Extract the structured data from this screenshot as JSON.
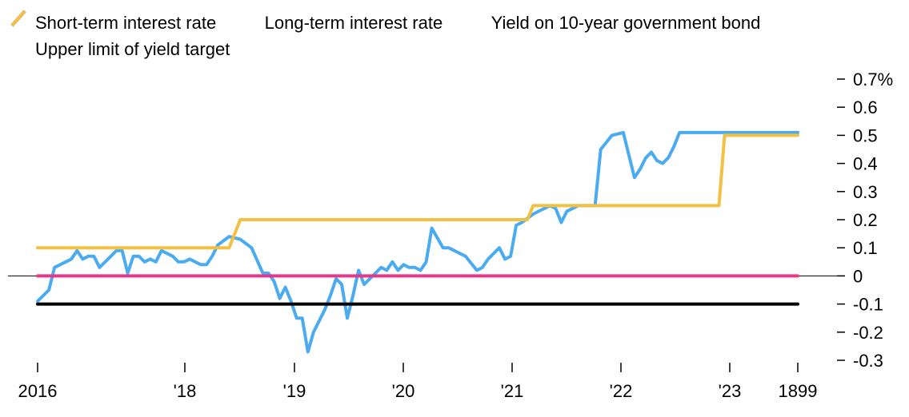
{
  "chart_data": {
    "type": "line",
    "legend": [
      {
        "name": "Short-term interest rate",
        "color": "#000000"
      },
      {
        "name": "Long-term interest rate",
        "color": "#e8378a"
      },
      {
        "name": "Yield on 10-year government bond",
        "color": "#4aabf0"
      },
      {
        "name": "Upper limit of yield target",
        "color": "#f2c043"
      }
    ],
    "x_ticks": [
      "2016",
      "'18",
      "'19",
      "'20",
      "'21",
      "'22",
      "'23",
      "1899"
    ],
    "y_ticks": [
      "0.7%",
      "0.6",
      "0.5",
      "0.4",
      "0.3",
      "0.2",
      "0.1",
      "0",
      "-0.1",
      "-0.2",
      "-0.3"
    ],
    "ylim": [
      -0.3,
      0.7
    ],
    "xlim": [
      0,
      135
    ],
    "series": [
      {
        "name": "Short-term interest rate",
        "color": "#000000",
        "x": [
          0,
          135
        ],
        "y": [
          -0.1,
          -0.1
        ]
      },
      {
        "name": "Long-term interest rate",
        "color": "#e8378a",
        "x": [
          0,
          135
        ],
        "y": [
          0,
          0
        ]
      },
      {
        "name": "Upper limit of yield target",
        "color": "#f2c043",
        "x": [
          0,
          34,
          36,
          87,
          88,
          121,
          122,
          135
        ],
        "y": [
          0.1,
          0.1,
          0.2,
          0.2,
          0.25,
          0.25,
          0.5,
          0.5
        ]
      },
      {
        "name": "Yield on 10-year government bond",
        "color": "#4aabf0",
        "x": [
          0,
          2,
          3,
          5,
          6,
          7,
          8,
          9,
          10,
          11,
          13,
          14,
          15,
          16,
          17,
          18,
          19,
          20,
          21,
          22,
          24,
          25,
          26,
          27,
          28,
          29,
          30,
          31,
          32,
          34,
          36,
          38,
          40,
          41,
          42,
          43,
          44,
          45,
          46,
          47,
          48,
          49,
          51,
          52,
          53,
          54,
          55,
          56,
          57,
          58,
          60,
          61,
          62,
          63,
          64,
          65,
          66,
          67,
          68,
          69,
          70,
          72,
          73,
          74,
          76,
          78,
          79,
          80,
          81,
          82,
          83,
          84,
          85,
          86,
          88,
          89,
          90,
          91,
          92,
          93,
          94,
          96,
          97,
          98,
          99,
          100,
          102,
          104,
          106,
          107,
          108,
          109,
          110,
          111,
          112,
          113,
          114,
          116,
          118,
          119,
          120,
          121,
          122,
          123,
          124,
          125,
          126,
          127,
          128,
          129,
          130,
          131,
          132,
          133,
          135
        ],
        "y": [
          -0.09,
          -0.05,
          0.03,
          0.05,
          0.06,
          0.09,
          0.06,
          0.07,
          0.07,
          0.03,
          0.07,
          0.09,
          0.09,
          0.01,
          0.07,
          0.07,
          0.05,
          0.06,
          0.05,
          0.09,
          0.07,
          0.05,
          0.05,
          0.06,
          0.05,
          0.04,
          0.04,
          0.07,
          0.11,
          0.14,
          0.13,
          0.1,
          0.01,
          0.01,
          -0.02,
          -0.08,
          -0.04,
          -0.09,
          -0.15,
          -0.15,
          -0.27,
          -0.2,
          -0.12,
          -0.07,
          -0.01,
          -0.03,
          -0.15,
          -0.07,
          0.02,
          -0.03,
          0.01,
          0.03,
          0.02,
          0.05,
          0.02,
          0.04,
          0.03,
          0.03,
          0.02,
          0.05,
          0.17,
          0.1,
          0.1,
          0.09,
          0.07,
          0.02,
          0.03,
          0.06,
          0.08,
          0.1,
          0.06,
          0.07,
          0.18,
          0.19,
          0.22,
          0.23,
          0.24,
          0.25,
          0.24,
          0.19,
          0.23,
          0.25,
          0.25,
          0.25,
          0.25,
          0.45,
          0.5,
          0.51,
          0.35,
          0.38,
          0.42,
          0.44,
          0.41,
          0.4,
          0.42,
          0.46,
          0.51,
          0.51,
          0.51,
          0.51,
          0.51,
          0.51,
          0.51,
          0.51,
          0.51,
          0.51,
          0.51,
          0.51,
          0.51,
          0.51,
          0.51,
          0.51,
          0.51,
          0.51,
          0.51
        ]
      }
    ]
  }
}
